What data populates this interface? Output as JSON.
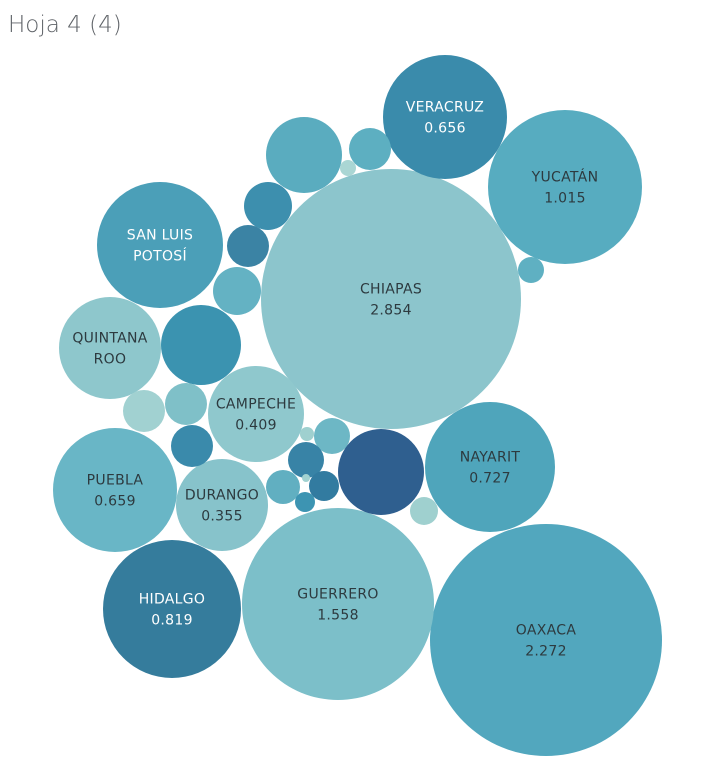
{
  "sheet": {
    "title": "Hoja 4 (4)"
  },
  "chart_data": {
    "type": "bubble",
    "title": "",
    "value_unit": "",
    "bubbles": [
      {
        "name": "CHIAPAS",
        "label_lines": [
          "CHIAPAS"
        ],
        "value": 2.854,
        "value_label": "2.854",
        "color": "#8cc5cc"
      },
      {
        "name": "OAXACA",
        "label_lines": [
          "OAXACA"
        ],
        "value": 2.272,
        "value_label": "2.272",
        "color": "#52a7be"
      },
      {
        "name": "GUERRERO",
        "label_lines": [
          "GUERRERO"
        ],
        "value": 1.558,
        "value_label": "1.558",
        "color": "#7cbfc9"
      },
      {
        "name": "YUCATÁN",
        "label_lines": [
          "YUCATÁN"
        ],
        "value": 1.015,
        "value_label": "1.015",
        "color": "#57acc0"
      },
      {
        "name": "HIDALGO",
        "label_lines": [
          "HIDALGO"
        ],
        "value": 0.819,
        "value_label": "0.819",
        "color": "#357c9c"
      },
      {
        "name": "NAYARIT",
        "label_lines": [
          "NAYARIT"
        ],
        "value": 0.727,
        "value_label": "0.727",
        "color": "#4fa5bb"
      },
      {
        "name": "PUEBLA",
        "label_lines": [
          "PUEBLA"
        ],
        "value": 0.659,
        "value_label": "0.659",
        "color": "#69b6c6"
      },
      {
        "name": "VERACRUZ",
        "label_lines": [
          "VERACRUZ"
        ],
        "value": 0.656,
        "value_label": "0.656",
        "color": "#3a8bab"
      },
      {
        "name": "CAMPECHE",
        "label_lines": [
          "CAMPECHE"
        ],
        "value": 0.409,
        "value_label": "0.409",
        "color": "#8fc8cd"
      },
      {
        "name": "DURANGO",
        "label_lines": [
          "DURANGO"
        ],
        "value": 0.355,
        "value_label": "0.355",
        "color": "#87c3cb"
      },
      {
        "name": "SAN LUIS POTOSÍ",
        "label_lines": [
          "SAN LUIS",
          "POTOSÍ"
        ],
        "value": null,
        "value_label": "",
        "color": "#4b9fb8"
      },
      {
        "name": "QUINTANA ROO",
        "label_lines": [
          "QUINTANA",
          "ROO"
        ],
        "value": null,
        "value_label": "",
        "color": "#8ec7cc"
      },
      {
        "name": "",
        "label_lines": [],
        "value": null,
        "value_label": "",
        "color": "#5aacbf"
      },
      {
        "name": "",
        "label_lines": [],
        "value": null,
        "value_label": "",
        "color": "#5dafc1"
      },
      {
        "name": "",
        "label_lines": [],
        "value": null,
        "value_label": "",
        "color": "#3d8fae"
      },
      {
        "name": "",
        "label_lines": [],
        "value": null,
        "value_label": "",
        "color": "#3b83a4"
      },
      {
        "name": "",
        "label_lines": [],
        "value": null,
        "value_label": "",
        "color": "#64b2c3"
      },
      {
        "name": "",
        "label_lines": [],
        "value": null,
        "value_label": "",
        "color": "#3b93b0"
      },
      {
        "name": "",
        "label_lines": [],
        "value": null,
        "value_label": "",
        "color": "#a1d1d1"
      },
      {
        "name": "",
        "label_lines": [],
        "value": null,
        "value_label": "",
        "color": "#7fc0c8"
      },
      {
        "name": "",
        "label_lines": [],
        "value": null,
        "value_label": "",
        "color": "#3a8aab"
      },
      {
        "name": "",
        "label_lines": [],
        "value": null,
        "value_label": "",
        "color": "#6db7c5"
      },
      {
        "name": "",
        "label_lines": [],
        "value": null,
        "value_label": "",
        "color": "#3883a6"
      },
      {
        "name": "",
        "label_lines": [],
        "value": null,
        "value_label": "",
        "color": "#61afc1"
      },
      {
        "name": "",
        "label_lines": [],
        "value": null,
        "value_label": "",
        "color": "#327ba0"
      },
      {
        "name": "",
        "label_lines": [],
        "value": null,
        "value_label": "",
        "color": "#2f5f8f"
      },
      {
        "name": "",
        "label_lines": [],
        "value": null,
        "value_label": "",
        "color": "#9fd0cf"
      },
      {
        "name": "",
        "label_lines": [],
        "value": null,
        "value_label": "",
        "color": "#3d94b2"
      },
      {
        "name": "",
        "label_lines": [],
        "value": null,
        "value_label": "",
        "color": "#9fd0cf"
      },
      {
        "name": "",
        "label_lines": [],
        "value": null,
        "value_label": "",
        "color": "#aad6d4"
      },
      {
        "name": "",
        "label_lines": [],
        "value": null,
        "value_label": "",
        "color": "#5fb0c2"
      },
      {
        "name": "",
        "label_lines": [],
        "value": null,
        "value_label": "",
        "color": "#a2d2d1"
      }
    ]
  }
}
